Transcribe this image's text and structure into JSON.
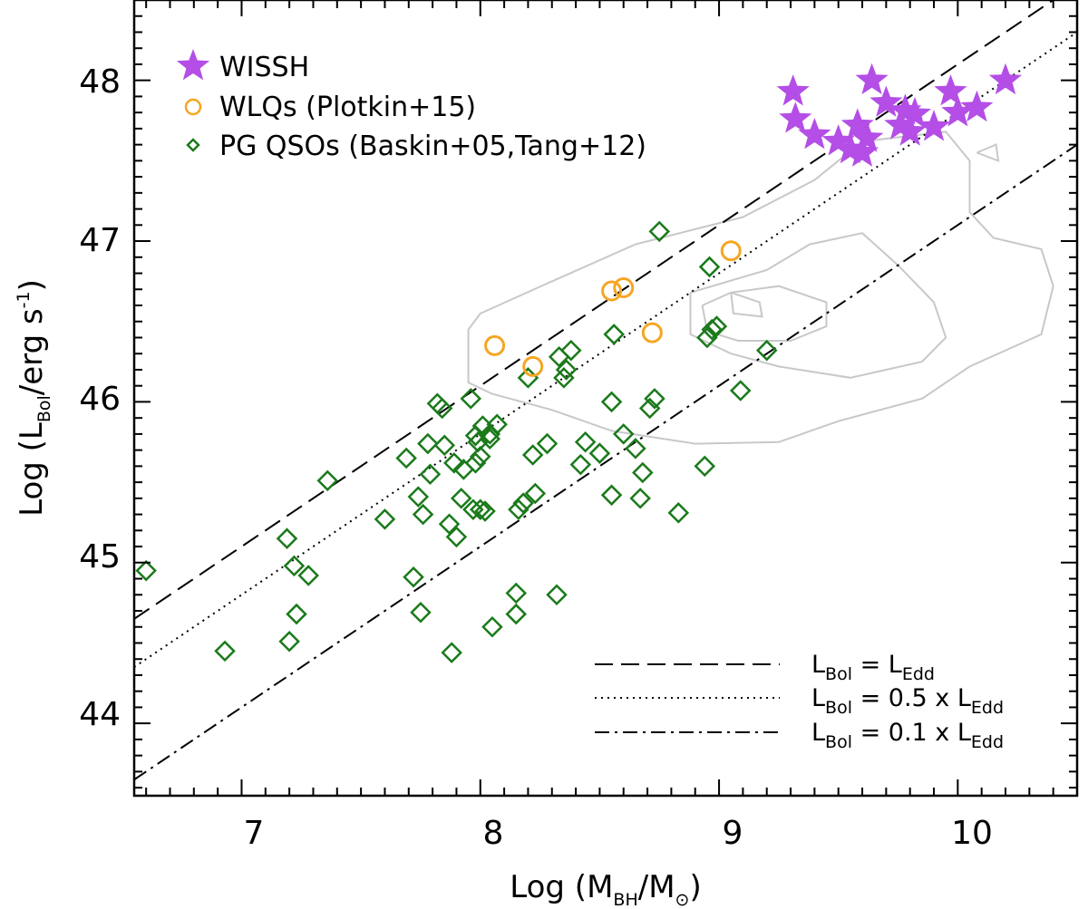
{
  "chart_data": {
    "type": "scatter",
    "title": "",
    "xlabel": {
      "main": "Log (M",
      "sub1": "BH",
      "mid": "/M",
      "sub2": "⊙",
      "end": ")"
    },
    "ylabel": {
      "main": "Log (L",
      "sub1": "Bol",
      "mid": "/erg s",
      "sup": "-1",
      "end": ")"
    },
    "xlim": [
      6.55,
      10.5
    ],
    "ylim": [
      43.55,
      48.5
    ],
    "xticks": [
      7,
      8,
      9,
      10
    ],
    "xtick_labels": [
      "7",
      "8",
      "9",
      "10"
    ],
    "yticks": [
      44,
      45,
      46,
      47,
      48
    ],
    "ytick_labels": [
      "44",
      "45",
      "46",
      "47",
      "48"
    ],
    "legend": {
      "position": "top-left",
      "entries": [
        {
          "label": "WISSH",
          "marker": "star",
          "color": "#b44ee6"
        },
        {
          "label": "WLQs (Plotkin+15)",
          "marker": "open-circle",
          "color": "#f5a623"
        },
        {
          "label": "PG QSOs (Baskin+05,Tang+12)",
          "marker": "open-diamond",
          "color": "#1a7a1a"
        }
      ]
    },
    "reference_lines": [
      {
        "name": "L_Bol = L_Edd",
        "style": "dashed",
        "intercept_at_x6_55": 44.65,
        "slope": 1.0,
        "label_parts": [
          "L",
          "Bol",
          " = L",
          "Edd",
          ""
        ]
      },
      {
        "name": "L_Bol = 0.5 x L_Edd",
        "style": "dotted",
        "intercept_at_x6_55": 44.35,
        "slope": 1.0,
        "label_parts": [
          "L",
          "Bol",
          " = 0.5 x L",
          "Edd",
          ""
        ]
      },
      {
        "name": "L_Bol = 0.1 x L_Edd",
        "style": "dashdot",
        "intercept_at_x6_55": 43.65,
        "slope": 1.0,
        "label_parts": [
          "L",
          "Bol",
          " = 0.1 x L",
          "Edd",
          ""
        ]
      }
    ],
    "contours": {
      "color": "#c8c8c8",
      "levels": [
        [
          [
            8.3,
            46.75
          ],
          [
            8.65,
            46.98
          ],
          [
            9.1,
            47.15
          ],
          [
            9.4,
            47.38
          ],
          [
            9.6,
            47.62
          ],
          [
            9.95,
            47.68
          ],
          [
            10.05,
            47.5
          ],
          [
            10.05,
            47.18
          ],
          [
            10.15,
            47.02
          ],
          [
            10.35,
            46.95
          ],
          [
            10.4,
            46.72
          ],
          [
            10.35,
            46.42
          ],
          [
            10.05,
            46.22
          ],
          [
            9.85,
            46.02
          ],
          [
            9.5,
            45.88
          ],
          [
            9.25,
            45.75
          ],
          [
            8.9,
            45.74
          ],
          [
            8.55,
            45.82
          ],
          [
            8.3,
            45.95
          ],
          [
            8.05,
            46.05
          ],
          [
            7.95,
            46.12
          ],
          [
            7.95,
            46.28
          ],
          [
            7.95,
            46.45
          ],
          [
            8.0,
            46.55
          ],
          [
            8.3,
            46.75
          ]
        ],
        [
          [
            8.88,
            46.68
          ],
          [
            9.2,
            46.82
          ],
          [
            9.38,
            46.98
          ],
          [
            9.6,
            47.05
          ],
          [
            9.75,
            46.85
          ],
          [
            9.9,
            46.62
          ],
          [
            9.95,
            46.4
          ],
          [
            9.85,
            46.25
          ],
          [
            9.55,
            46.15
          ],
          [
            9.25,
            46.22
          ],
          [
            9.05,
            46.3
          ],
          [
            8.88,
            46.42
          ],
          [
            8.88,
            46.68
          ]
        ],
        [
          [
            8.93,
            46.6
          ],
          [
            9.05,
            46.68
          ],
          [
            9.25,
            46.72
          ],
          [
            9.45,
            46.62
          ],
          [
            9.45,
            46.47
          ],
          [
            9.3,
            46.38
          ],
          [
            9.08,
            46.38
          ],
          [
            8.95,
            46.44
          ],
          [
            8.93,
            46.6
          ]
        ],
        [
          [
            9.05,
            46.68
          ],
          [
            9.17,
            46.62
          ],
          [
            9.18,
            46.53
          ],
          [
            9.06,
            46.55
          ],
          [
            9.05,
            46.68
          ]
        ],
        [
          [
            10.08,
            47.55
          ],
          [
            10.16,
            47.6
          ],
          [
            10.17,
            47.5
          ],
          [
            10.08,
            47.55
          ]
        ]
      ]
    },
    "series": [
      {
        "name": "WISSH",
        "marker": "star",
        "color": "#b44ee6",
        "x": [
          9.31,
          9.32,
          9.4,
          9.5,
          9.55,
          9.58,
          9.6,
          9.62,
          9.64,
          9.7,
          9.76,
          9.78,
          9.8,
          9.82,
          9.9,
          9.97,
          10.0,
          10.08,
          10.2
        ],
        "y": [
          47.93,
          47.76,
          47.66,
          47.62,
          47.57,
          47.72,
          47.55,
          47.64,
          48.0,
          47.86,
          47.72,
          47.81,
          47.68,
          47.79,
          47.71,
          47.93,
          47.8,
          47.83,
          48.0
        ]
      },
      {
        "name": "WLQs (Plotkin+15)",
        "marker": "open-circle",
        "color": "#f5a623",
        "x": [
          8.06,
          8.22,
          8.55,
          8.6,
          8.72,
          9.05
        ],
        "y": [
          46.35,
          46.22,
          46.69,
          46.71,
          46.43,
          46.94
        ]
      },
      {
        "name": "PG QSOs (Baskin+05,Tang+12)",
        "marker": "open-diamond",
        "color": "#1a7a1a",
        "x": [
          6.6,
          6.93,
          7.19,
          7.2,
          7.22,
          7.23,
          7.28,
          7.36,
          7.6,
          7.69,
          7.72,
          7.74,
          7.75,
          7.76,
          7.78,
          7.79,
          7.82,
          7.84,
          7.85,
          7.87,
          7.88,
          7.89,
          7.9,
          7.92,
          7.96,
          7.97,
          7.98,
          7.99,
          8.0,
          8.01,
          8.02,
          8.04,
          8.05,
          8.07,
          8.15,
          8.15,
          8.16,
          8.18,
          8.2,
          8.22,
          8.23,
          8.28,
          8.32,
          8.33,
          8.35,
          8.36,
          8.38,
          8.42,
          8.44,
          8.5,
          8.55,
          8.56,
          8.6,
          8.65,
          8.67,
          8.68,
          8.71,
          8.73,
          8.75,
          8.83,
          8.94,
          8.95,
          8.96,
          8.97,
          8.99,
          9.09,
          9.2,
          8.04,
          8.0,
          7.93,
          7.98,
          8.55
        ],
        "y": [
          44.95,
          44.45,
          45.15,
          44.51,
          44.98,
          44.68,
          44.92,
          45.51,
          45.27,
          45.65,
          44.91,
          45.41,
          44.69,
          45.3,
          45.74,
          45.55,
          45.99,
          45.96,
          45.73,
          45.24,
          44.44,
          45.62,
          45.16,
          45.4,
          46.02,
          45.33,
          45.62,
          45.75,
          45.33,
          45.85,
          45.32,
          45.8,
          44.6,
          45.86,
          44.81,
          44.68,
          45.33,
          45.37,
          46.15,
          45.67,
          45.43,
          45.74,
          44.8,
          46.28,
          46.15,
          46.2,
          46.32,
          45.61,
          45.75,
          45.68,
          46.0,
          46.42,
          45.8,
          45.71,
          45.4,
          45.56,
          45.96,
          46.02,
          47.06,
          45.31,
          45.6,
          46.4,
          46.84,
          46.45,
          46.47,
          46.07,
          46.32,
          45.77,
          45.66,
          45.58,
          45.79,
          45.42
        ]
      }
    ]
  }
}
